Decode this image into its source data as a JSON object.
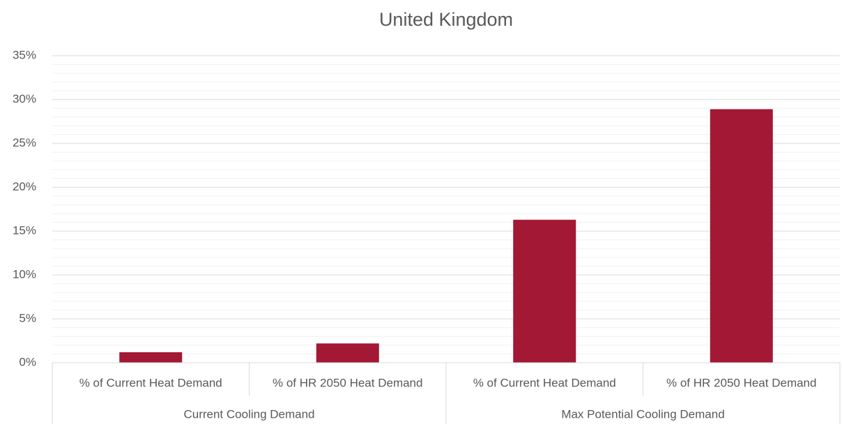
{
  "chart_data": {
    "type": "bar",
    "title": "United Kingdom",
    "categories": [
      "% of Current Heat Demand",
      "% of HR 2050 Heat Demand",
      "% of Current Heat Demand",
      "% of HR 2050 Heat Demand"
    ],
    "groups": [
      {
        "label": "Current Cooling Demand",
        "span": 2
      },
      {
        "label": "Max Potential Cooling Demand",
        "span": 2
      }
    ],
    "values": [
      1.2,
      2.2,
      16.3,
      28.9
    ],
    "color": "#a31834",
    "ylim": [
      0,
      35
    ],
    "yticks": [
      {
        "value": 0,
        "label": "0%"
      },
      {
        "value": 5,
        "label": "5%"
      },
      {
        "value": 10,
        "label": "10%"
      },
      {
        "value": 15,
        "label": "15%"
      },
      {
        "value": 20,
        "label": "20%"
      },
      {
        "value": 25,
        "label": "25%"
      },
      {
        "value": 30,
        "label": "30%"
      },
      {
        "value": 35,
        "label": "35%"
      }
    ],
    "grid": true,
    "minor_grid_step": 1
  }
}
